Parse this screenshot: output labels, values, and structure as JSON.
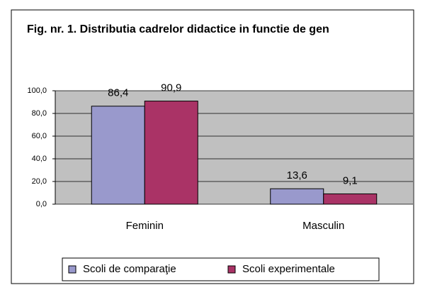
{
  "chart_data": {
    "type": "bar",
    "title": "Fig. nr. 1. Distributia cadrelor didactice in functie de gen",
    "categories": [
      "Feminin",
      "Masculin"
    ],
    "series": [
      {
        "name": "Scoli de comparaţie",
        "color": "#9999cc",
        "values": [
          86.4,
          13.6
        ],
        "value_labels": [
          "86,4",
          "13,6"
        ]
      },
      {
        "name": "Scoli experimentale",
        "color": "#aa3366",
        "values": [
          90.9,
          9.1
        ],
        "value_labels": [
          "90,9",
          "9,1"
        ]
      }
    ],
    "ylim": [
      0,
      100
    ],
    "yticks": [
      {
        "value": 0,
        "label": "0,0"
      },
      {
        "value": 20,
        "label": "20,0"
      },
      {
        "value": 40,
        "label": "40,0"
      },
      {
        "value": 60,
        "label": "60,0"
      },
      {
        "value": 80,
        "label": "80,0"
      },
      {
        "value": 100,
        "label": "100,0"
      }
    ],
    "grid": true,
    "legend": "bottom"
  }
}
